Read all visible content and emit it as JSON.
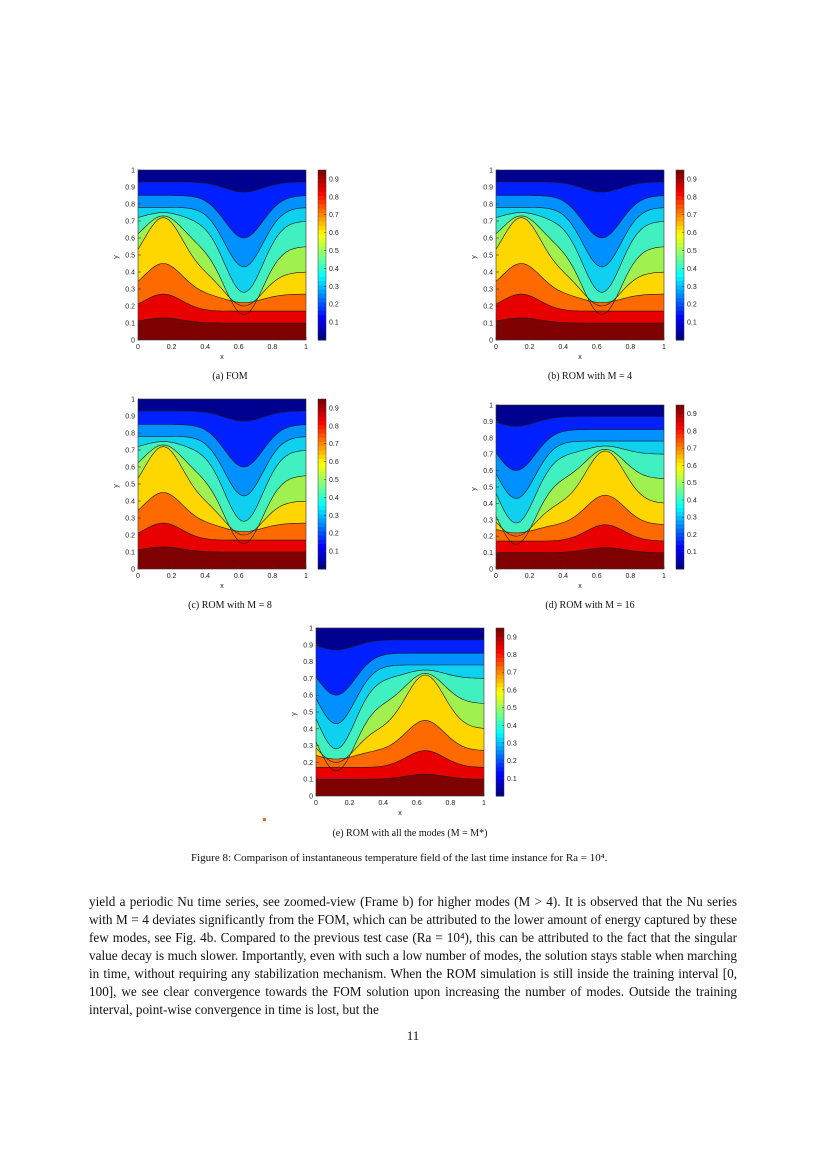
{
  "figure": {
    "caption": "Figure 8: Comparison of instantaneous temperature field of the last time instance for Ra = 10⁴.",
    "colorbar_ticks": [
      "0.1",
      "0.2",
      "0.3",
      "0.4",
      "0.5",
      "0.6",
      "0.7",
      "0.8",
      "0.9"
    ],
    "x_ticks": [
      "0",
      "0.2",
      "0.4",
      "0.6",
      "0.8",
      "1"
    ],
    "y_ticks": [
      "0",
      "0.1",
      "0.2",
      "0.3",
      "0.4",
      "0.5",
      "0.6",
      "0.7",
      "0.8",
      "0.9",
      "1"
    ],
    "xlabel": "x",
    "ylabel": "y",
    "colors": {
      "levels": [
        "#00008f",
        "#0020ff",
        "#0090ff",
        "#10d0f0",
        "#40f0c0",
        "#a0f050",
        "#ffd700",
        "#ff6a00",
        "#e80000",
        "#7f0000"
      ]
    },
    "panels": [
      {
        "id": "a",
        "caption": "(a) FOM",
        "pattern": "left-hot"
      },
      {
        "id": "b",
        "caption": "(b) ROM with M = 4",
        "pattern": "left-hot"
      },
      {
        "id": "c",
        "caption": "(c) ROM with M = 8",
        "pattern": "left-hot"
      },
      {
        "id": "d",
        "caption": "(d) ROM with M = 16",
        "pattern": "right-hot"
      },
      {
        "id": "e",
        "caption": "(e) ROM with all the modes (M = M*)",
        "pattern": "right-hot"
      }
    ]
  },
  "body": {
    "paragraph": "yield a periodic Nu time series, see zoomed-view (Frame b) for higher modes (M > 4). It is observed that the Nu series with M = 4 deviates significantly from the FOM, which can be attributed to the lower amount of energy captured by these few modes, see Fig. 4b. Compared to the previous test case (Ra = 10⁴), this can be attributed to the fact that the singular value decay is much slower. Importantly, even with such a low number of modes, the solution stays stable when marching in time, without requiring any stabilization mechanism. When the ROM simulation is still inside the training interval [0, 100], we see clear convergence towards the FOM solution upon increasing the number of modes. Outside the training interval, point-wise convergence in time is lost, but the"
  },
  "page_number": "11"
}
